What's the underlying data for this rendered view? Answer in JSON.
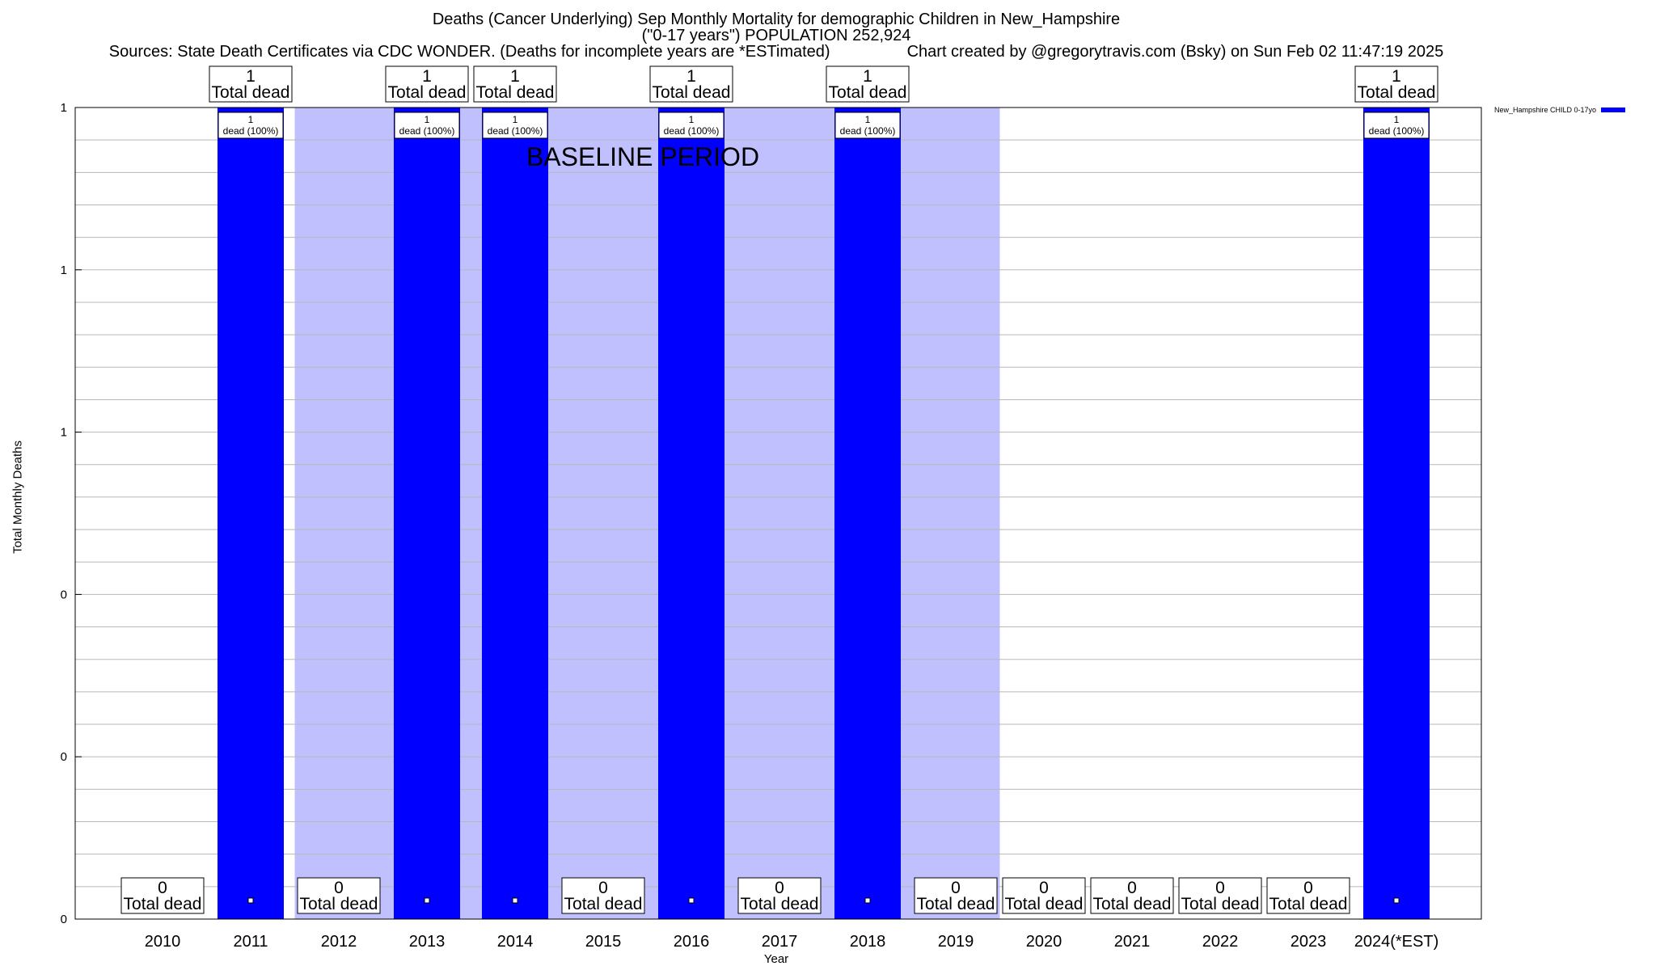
{
  "chart_data": {
    "type": "bar",
    "title": "Deaths (Cancer Underlying) Sep Monthly Mortality for demographic Children in New_Hampshire",
    "subtitle": "(\"0-17 years\") POPULATION 252,924",
    "sources": "Sources: State Death Certificates via CDC WONDER. (Deaths for incomplete years are *ESTimated)",
    "credit": "Chart created by @gregorytravis.com (Bsky) on Sun Feb 02 11:47:19 2025",
    "xlabel": "Year",
    "ylabel": "Total Monthly Deaths",
    "ylim": [
      0,
      1
    ],
    "yticks": [
      0,
      0.2,
      0.4,
      0.6,
      0.8,
      1
    ],
    "ytick_labels": [
      "0",
      "0",
      "0",
      "1",
      "1",
      "1"
    ],
    "categories": [
      "2010",
      "2011",
      "2012",
      "2013",
      "2014",
      "2015",
      "2016",
      "2017",
      "2018",
      "2019",
      "2020",
      "2021",
      "2022",
      "2023",
      "2024(*EST)"
    ],
    "series": [
      {
        "name": "New_Hampshire CHILD 0-17yo",
        "color": "#0000ff",
        "values": [
          0,
          1,
          0,
          1,
          1,
          0,
          1,
          0,
          1,
          0,
          0,
          0,
          0,
          0,
          1
        ]
      }
    ],
    "total_label": "Total dead",
    "bar_label_suffix": "dead (100%)",
    "baseline_label": "BASELINE PERIOD",
    "baseline_color": "#c0c0ff",
    "baseline_range": [
      "2012",
      "2019"
    ],
    "grid": true,
    "legend_position": "top-right"
  }
}
